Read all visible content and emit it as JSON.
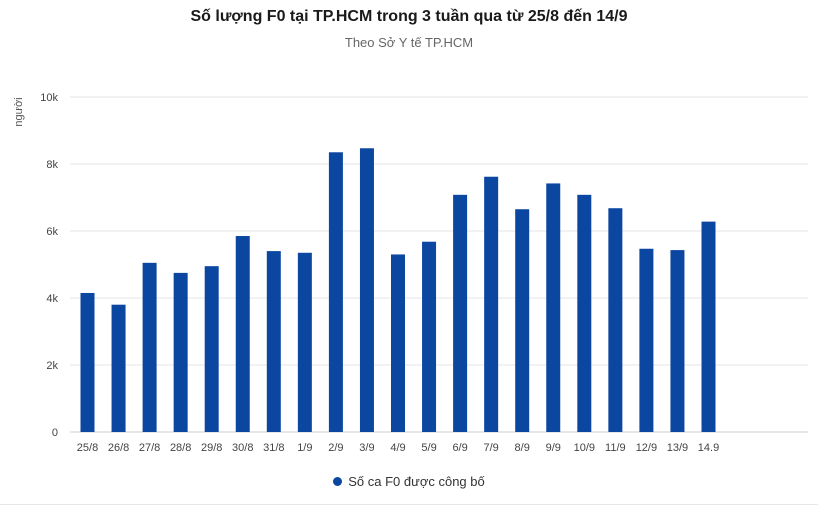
{
  "chart_data": {
    "type": "bar",
    "title": "Số lượng F0 tại TP.HCM trong 3 tuần qua từ 25/8 đến 14/9",
    "subtitle": "Theo Sở Y tế TP.HCM",
    "ylabel": "người",
    "xlabel": "",
    "ylim": [
      0,
      10000
    ],
    "yticks": [
      0,
      2000,
      4000,
      6000,
      8000,
      10000
    ],
    "ytick_labels": [
      "0",
      "2k",
      "4k",
      "6k",
      "8k",
      "10k"
    ],
    "categories": [
      "25/8",
      "26/8",
      "27/8",
      "28/8",
      "29/8",
      "30/8",
      "31/8",
      "1/9",
      "2/9",
      "3/9",
      "4/9",
      "5/9",
      "6/9",
      "7/9",
      "8/9",
      "9/9",
      "10/9",
      "11/9",
      "12/9",
      "13/9",
      "14.9"
    ],
    "series": [
      {
        "name": "Số ca F0 được công bố",
        "color": "#0b47a1",
        "values": [
          4150,
          3800,
          5050,
          4750,
          4950,
          5850,
          5400,
          5350,
          8350,
          8470,
          5300,
          5680,
          7080,
          7620,
          6650,
          7420,
          7080,
          6680,
          5470,
          5430,
          6280
        ]
      }
    ],
    "grid": true,
    "legend_position": "bottom-center"
  },
  "colors": {
    "bar": "#0b47a1",
    "grid": "#e6e6e6",
    "axis_text": "#444444"
  }
}
